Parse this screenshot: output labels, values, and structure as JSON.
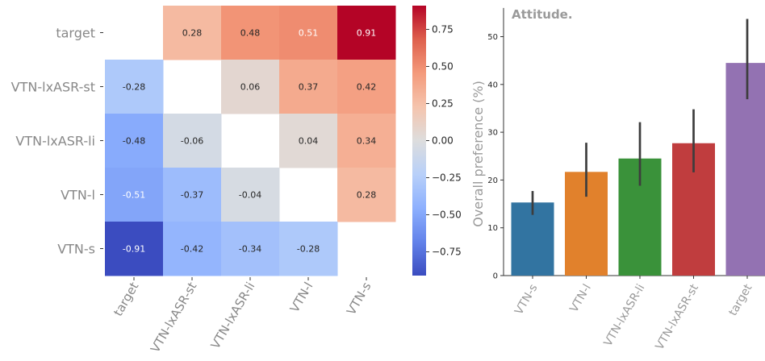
{
  "chart_data": [
    {
      "type": "heatmap",
      "rows": [
        "target",
        "VTN-lxASR-st",
        "VTN-lxASR-li",
        "VTN-l",
        "VTN-s"
      ],
      "columns": [
        "target",
        "VTN-lxASR-st",
        "VTN-lxASR-li",
        "VTN-l",
        "VTN-s"
      ],
      "values": [
        [
          null,
          0.28,
          0.48,
          0.51,
          0.91
        ],
        [
          -0.28,
          null,
          0.06,
          0.37,
          0.42
        ],
        [
          -0.48,
          -0.06,
          null,
          0.04,
          0.34
        ],
        [
          -0.51,
          -0.37,
          -0.04,
          null,
          0.28
        ],
        [
          -0.91,
          -0.42,
          -0.34,
          -0.28,
          null
        ]
      ],
      "cell_labels": [
        [
          "",
          "0.28",
          "0.48",
          "0.51",
          "0.91"
        ],
        [
          "-0.28",
          "",
          "0.06",
          "0.37",
          "0.42"
        ],
        [
          "-0.48",
          "-0.06",
          "",
          "0.04",
          "0.34"
        ],
        [
          "-0.51",
          "-0.37",
          "-0.04",
          "",
          "0.28"
        ],
        [
          "-0.91",
          "-0.42",
          "-0.34",
          "-0.28",
          ""
        ]
      ],
      "colormap": "coolwarm",
      "vmin": -0.91,
      "vmax": 0.91,
      "colorbar_ticks": [
        0.75,
        0.5,
        0.25,
        0.0,
        -0.25,
        -0.5,
        -0.75
      ],
      "colorbar_tick_labels": [
        "0.75",
        "0.50",
        "0.25",
        "0.00",
        "−0.25",
        "−0.50",
        "−0.75"
      ]
    },
    {
      "type": "bar",
      "title": "Attitude.",
      "ylabel": "Overall preference (%)",
      "categories": [
        "VTN-s",
        "VTN-l",
        "VTN-lxASR-li",
        "VTN-lxASR-st",
        "target"
      ],
      "values": [
        15.3,
        21.7,
        24.5,
        27.7,
        44.5
      ],
      "error_low": [
        12.7,
        16.5,
        18.8,
        21.6,
        36.9
      ],
      "error_high": [
        17.7,
        27.8,
        32.1,
        34.8,
        53.7
      ],
      "colors": [
        "#3274a1",
        "#e1812c",
        "#3a923a",
        "#c03d3e",
        "#9372b2"
      ],
      "yticks": [
        0,
        10,
        20,
        30,
        40,
        50
      ],
      "ylim": [
        0,
        56
      ]
    }
  ]
}
